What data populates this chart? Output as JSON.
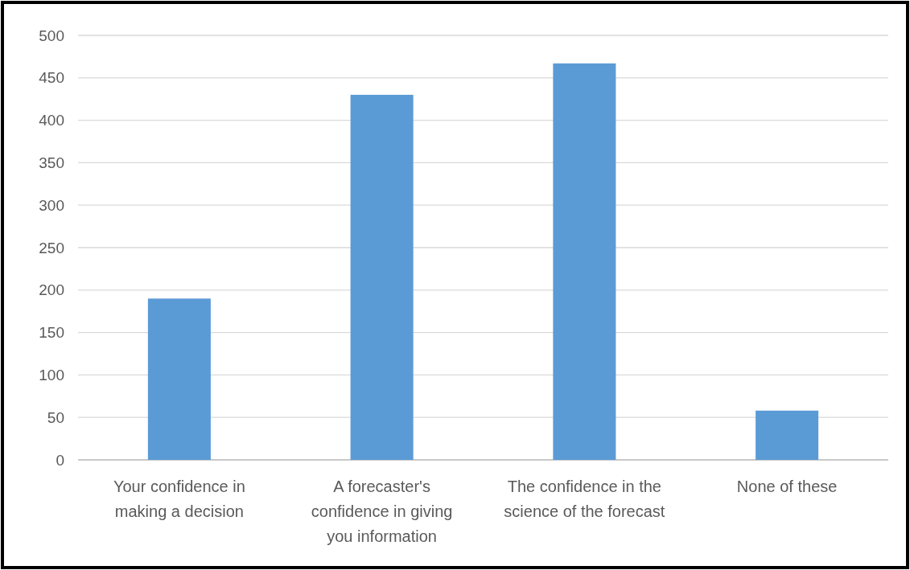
{
  "chart_data": {
    "type": "bar",
    "categories": [
      "Your confidence in making a decision",
      "A forecaster's confidence in giving you information",
      "The confidence in the science of the forecast",
      "None of these"
    ],
    "values": [
      190,
      430,
      467,
      58
    ],
    "color": "#5b9bd5",
    "ylim": [
      0,
      500
    ],
    "yticks": [
      0,
      50,
      100,
      150,
      200,
      250,
      300,
      350,
      400,
      450,
      500
    ],
    "grid": "y"
  }
}
